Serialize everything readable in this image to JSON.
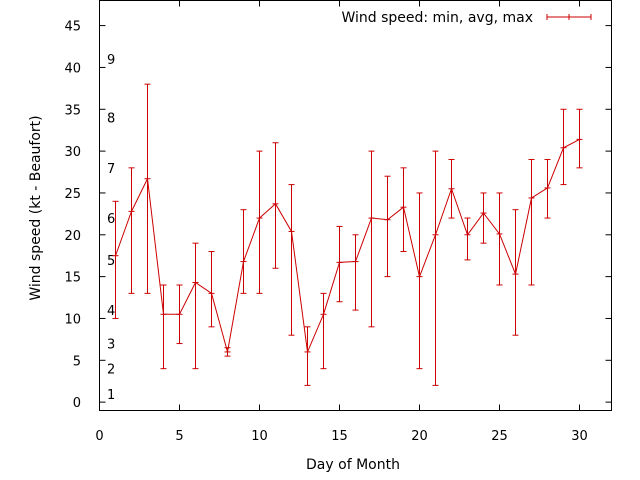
{
  "chart_data": {
    "type": "line",
    "title": "",
    "xlabel": "Day of Month",
    "ylabel": "Wind speed (kt - Beaufort)",
    "xlim": [
      0,
      32
    ],
    "ylim": [
      -1,
      48
    ],
    "xticks": [
      0,
      5,
      10,
      15,
      20,
      25,
      30
    ],
    "yticks": [
      0,
      5,
      10,
      15,
      20,
      25,
      30,
      35,
      40,
      45
    ],
    "grid": false,
    "legend_position": "top-right",
    "series_color": "#cc0000",
    "beaufort_labels": [
      {
        "label": "1",
        "y": 1
      },
      {
        "label": "2",
        "y": 4
      },
      {
        "label": "3",
        "y": 7
      },
      {
        "label": "4",
        "y": 11
      },
      {
        "label": "5",
        "y": 17
      },
      {
        "label": "6",
        "y": 22
      },
      {
        "label": "7",
        "y": 28
      },
      {
        "label": "8",
        "y": 34
      },
      {
        "label": "9",
        "y": 41
      }
    ],
    "series": [
      {
        "name": "Wind speed: min, avg, max",
        "x": [
          1,
          2,
          3,
          4,
          5,
          6,
          7,
          8,
          9,
          10,
          11,
          12,
          13,
          14,
          15,
          16,
          17,
          18,
          19,
          20,
          21,
          22,
          23,
          24,
          25,
          26,
          27,
          28,
          29,
          30
        ],
        "avg": [
          17.5,
          22.8,
          26.7,
          10.5,
          10.5,
          14.3,
          13,
          6,
          16.8,
          22,
          23.7,
          20.4,
          6,
          10.5,
          16.7,
          16.8,
          22,
          21.8,
          23.3,
          15,
          20,
          25.5,
          20,
          22.6,
          20.1,
          15.3,
          24.4,
          25.6,
          30.4,
          31.4
        ],
        "min": [
          10,
          13,
          13,
          4,
          7,
          4,
          9,
          5.5,
          13,
          13,
          16,
          8,
          2,
          4,
          12,
          11,
          9,
          15,
          18,
          4,
          2,
          22,
          17,
          19,
          14,
          8,
          14,
          22,
          26,
          28
        ],
        "max": [
          24,
          28,
          38,
          14,
          14,
          19,
          18,
          6.5,
          23,
          30,
          31,
          26,
          9,
          13,
          21,
          20,
          30,
          27,
          28,
          25,
          30,
          29,
          22,
          25,
          25,
          23,
          29,
          29,
          35,
          35
        ]
      }
    ]
  }
}
